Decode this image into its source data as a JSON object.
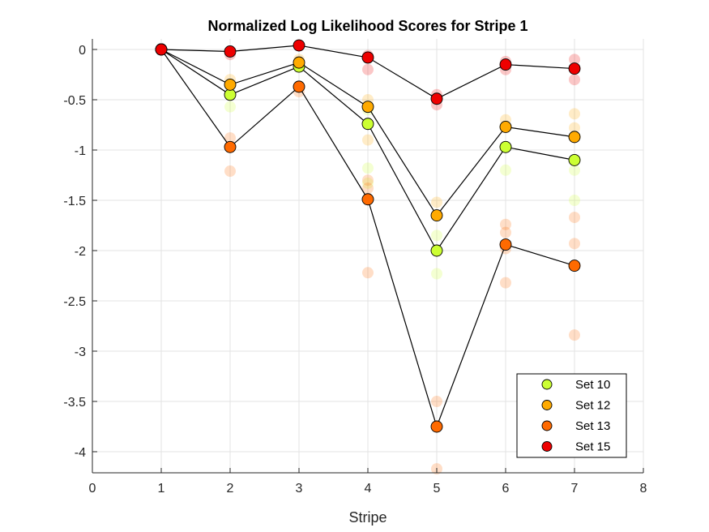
{
  "chart_data": {
    "type": "scatter",
    "title": "Normalized Log Likelihood Scores for Stripe 1",
    "xlabel": "Stripe",
    "ylabel": "",
    "xlim": [
      0,
      8
    ],
    "ylim": [
      -4.2,
      0.1
    ],
    "xticks": [
      0,
      1,
      2,
      3,
      4,
      5,
      6,
      7,
      8
    ],
    "xtick_labels": [
      "0",
      "1",
      "2",
      "3",
      "4",
      "5",
      "6",
      "7",
      "8"
    ],
    "yticks": [
      0,
      -0.5,
      -1,
      -1.5,
      -2,
      -2.5,
      -3,
      -3.5,
      -4
    ],
    "ytick_labels": [
      "0",
      "-0.5",
      "-1",
      "-1.5",
      "-2",
      "-2.5",
      "-3",
      "-3.5",
      "-4"
    ],
    "grid": true,
    "legend_position": "bottom-right",
    "x": [
      1,
      2,
      3,
      4,
      5,
      6,
      7
    ],
    "series": [
      {
        "name": "Set 10",
        "color": "#ccff33",
        "values": [
          0,
          -0.45,
          -0.17,
          -0.74,
          -2.0,
          -0.97,
          -1.1
        ],
        "faded": [
          [
            2,
            -0.57
          ],
          [
            4,
            -1.18
          ],
          [
            4,
            -1.33
          ],
          [
            4,
            -0.6
          ],
          [
            5,
            -1.85
          ],
          [
            5,
            -2.23
          ],
          [
            6,
            -1.2
          ],
          [
            7,
            -1.5
          ],
          [
            7,
            -1.2
          ]
        ]
      },
      {
        "name": "Set 12",
        "color": "#ffaa00",
        "values": [
          0,
          -0.35,
          -0.13,
          -0.57,
          -1.65,
          -0.77,
          -0.87
        ],
        "faded": [
          [
            2,
            -0.3
          ],
          [
            3,
            -0.1
          ],
          [
            4,
            -0.5
          ],
          [
            4,
            -0.9
          ],
          [
            5,
            -1.52
          ],
          [
            6,
            -0.7
          ],
          [
            7,
            -0.64
          ],
          [
            7,
            -0.78
          ]
        ]
      },
      {
        "name": "Set 13",
        "color": "#ff6a00",
        "values": [
          0,
          -0.97,
          -0.37,
          -1.49,
          -3.75,
          -1.94,
          -2.15
        ],
        "faded": [
          [
            2,
            -1.21
          ],
          [
            2,
            -0.88
          ],
          [
            3,
            -0.42
          ],
          [
            4,
            -1.3
          ],
          [
            4,
            -1.38
          ],
          [
            4,
            -2.22
          ],
          [
            5,
            -3.5
          ],
          [
            5,
            -4.17
          ],
          [
            6,
            -1.74
          ],
          [
            6,
            -1.82
          ],
          [
            6,
            -2.32
          ],
          [
            6,
            -1.98
          ],
          [
            7,
            -1.67
          ],
          [
            7,
            -1.93
          ],
          [
            7,
            -2.84
          ]
        ]
      },
      {
        "name": "Set 15",
        "color": "#ee0000",
        "values": [
          0,
          -0.02,
          0.04,
          -0.08,
          -0.49,
          -0.15,
          -0.19
        ],
        "faded": [
          [
            2,
            -0.05
          ],
          [
            4,
            -0.06
          ],
          [
            4,
            -0.2
          ],
          [
            5,
            -0.45
          ],
          [
            5,
            -0.55
          ],
          [
            6,
            -0.2
          ],
          [
            6,
            -0.12
          ],
          [
            7,
            -0.1
          ],
          [
            7,
            -0.3
          ]
        ]
      }
    ]
  }
}
